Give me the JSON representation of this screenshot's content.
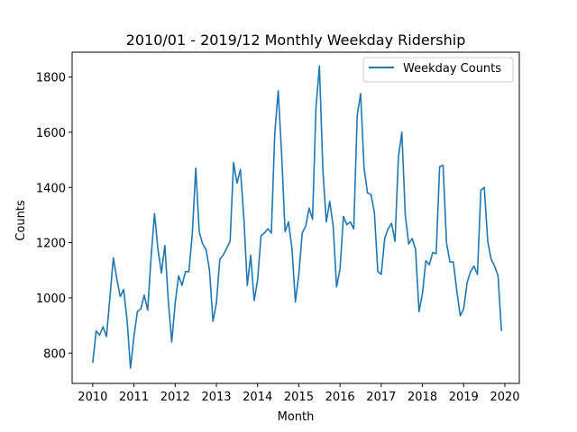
{
  "chart_data": {
    "type": "line",
    "title": "2010/01 - 2019/12 Monthly Weekday Ridership",
    "xlabel": "Month",
    "ylabel": "Counts",
    "x_range": [
      2010.0,
      2019.917
    ],
    "xlim": [
      2009.5,
      2020.35
    ],
    "ylim": [
      690,
      1890
    ],
    "grid": false,
    "legend": "top-right",
    "x_ticks": [
      2010,
      2011,
      2012,
      2013,
      2014,
      2015,
      2016,
      2017,
      2018,
      2019,
      2020
    ],
    "y_ticks": [
      800,
      1000,
      1200,
      1400,
      1600,
      1800
    ],
    "series": [
      {
        "name": "Weekday Counts",
        "color": "#1f77b4",
        "values": [
          765,
          880,
          865,
          895,
          860,
          1000,
          1145,
          1070,
          1005,
          1030,
          920,
          745,
          860,
          950,
          960,
          1010,
          955,
          1150,
          1305,
          1175,
          1090,
          1190,
          990,
          840,
          980,
          1080,
          1045,
          1095,
          1095,
          1235,
          1470,
          1240,
          1195,
          1175,
          1100,
          915,
          980,
          1140,
          1155,
          1180,
          1205,
          1490,
          1415,
          1465,
          1290,
          1045,
          1155,
          990,
          1065,
          1225,
          1235,
          1250,
          1235,
          1595,
          1750,
          1520,
          1240,
          1275,
          1180,
          985,
          1085,
          1235,
          1260,
          1325,
          1285,
          1690,
          1840,
          1465,
          1275,
          1350,
          1260,
          1040,
          1105,
          1295,
          1265,
          1275,
          1250,
          1660,
          1740,
          1470,
          1380,
          1375,
          1310,
          1095,
          1085,
          1215,
          1250,
          1270,
          1205,
          1510,
          1600,
          1300,
          1195,
          1215,
          1175,
          950,
          1015,
          1135,
          1120,
          1165,
          1160,
          1475,
          1480,
          1200,
          1130,
          1130,
          1025,
          935,
          960,
          1055,
          1095,
          1115,
          1085,
          1390,
          1400,
          1205,
          1140,
          1115,
          1080,
          880
        ]
      }
    ]
  }
}
